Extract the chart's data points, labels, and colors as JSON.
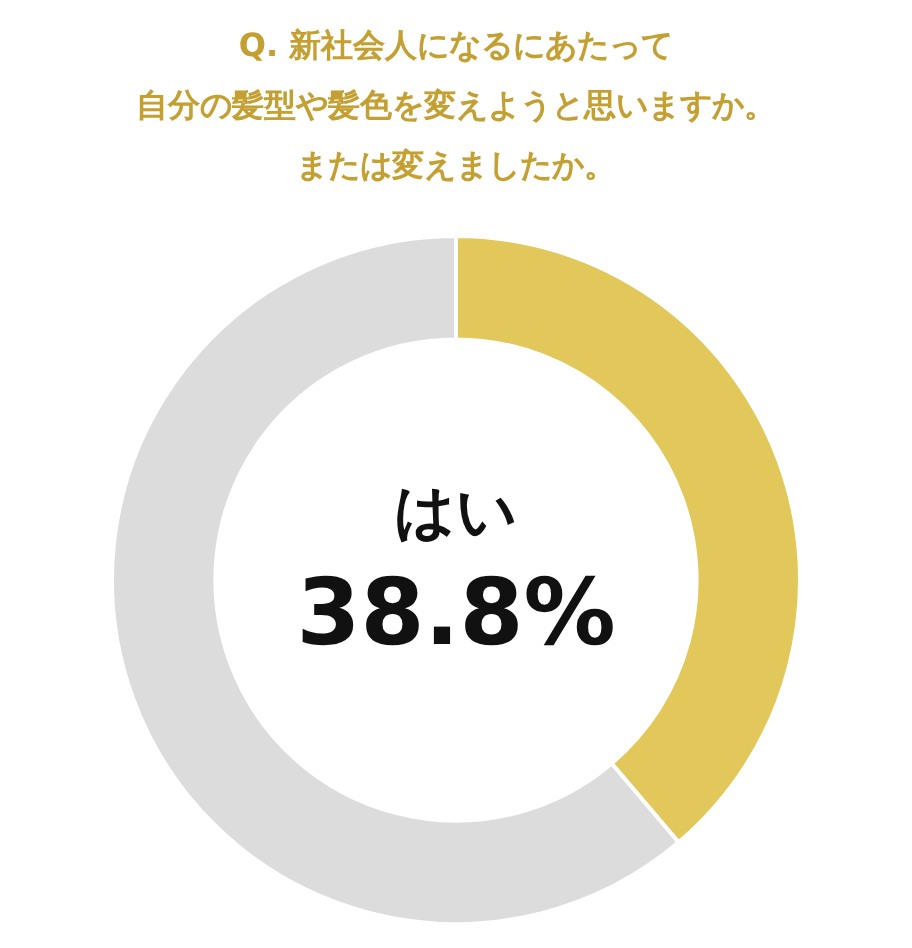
{
  "chart_data": {
    "type": "donut",
    "title": "Q. 新社会人になるにあたって",
    "subtitle": "自分の髪型や髪色を変えようと思いますか。または変えましたか。",
    "categories": [
      "はい",
      null
    ],
    "values": [
      38.8,
      61.2
    ],
    "colors": [
      "#e2c85a",
      "#dcdcdc"
    ],
    "value_labels": [
      "38.8%",
      null
    ],
    "legend": false
  }
}
